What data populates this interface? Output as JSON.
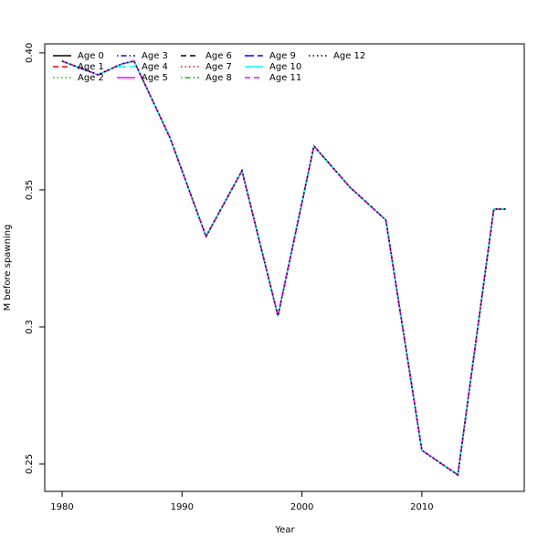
{
  "chart_data": {
    "type": "line",
    "xlabel": "Year",
    "ylabel": "M before spawning",
    "x": [
      1980,
      1983,
      1985,
      1986,
      1989,
      1992,
      1995,
      1998,
      2001,
      2002,
      2003,
      2004,
      2006,
      2007,
      2010,
      2013,
      2016,
      2017
    ],
    "xlim": [
      1978.55,
      2018.54
    ],
    "xticks": [
      1980,
      1990,
      2000,
      2010
    ],
    "ylim": [
      0.24,
      0.4033
    ],
    "yticks": [
      0.25,
      0.3,
      0.35,
      {
        "value": 0.4,
        "label": "0.40"
      }
    ],
    "series": [
      {
        "name": "Age 0",
        "color": "#000000",
        "linestyle": "solid",
        "values": [
          0.397,
          0.392,
          0.396,
          0.397,
          0.369,
          0.333,
          0.357,
          0.304,
          0.366,
          0.361,
          0.356,
          0.351,
          0.343,
          0.339,
          0.255,
          0.246,
          0.343,
          0.343
        ]
      },
      {
        "name": "Age 1",
        "color": "#ff0000",
        "linestyle": "dashed",
        "values": [
          0.397,
          0.392,
          0.396,
          0.397,
          0.369,
          0.333,
          0.357,
          0.304,
          0.366,
          0.361,
          0.356,
          0.351,
          0.343,
          0.339,
          0.255,
          0.246,
          0.343,
          0.343
        ]
      },
      {
        "name": "Age 2",
        "color": "#00cd00",
        "linestyle": "dotted",
        "values": [
          0.397,
          0.392,
          0.396,
          0.397,
          0.369,
          0.333,
          0.357,
          0.304,
          0.366,
          0.361,
          0.356,
          0.351,
          0.343,
          0.339,
          0.255,
          0.246,
          0.343,
          0.343
        ]
      },
      {
        "name": "Age 3",
        "color": "#0000ff",
        "linestyle": "dotdash",
        "values": [
          0.397,
          0.392,
          0.396,
          0.397,
          0.369,
          0.333,
          0.357,
          0.304,
          0.366,
          0.361,
          0.356,
          0.351,
          0.343,
          0.339,
          0.255,
          0.246,
          0.343,
          0.343
        ]
      },
      {
        "name": "Age 4",
        "color": "#00ffff",
        "linestyle": "longdash",
        "values": [
          0.397,
          0.392,
          0.396,
          0.397,
          0.369,
          0.333,
          0.357,
          0.304,
          0.366,
          0.361,
          0.356,
          0.351,
          0.343,
          0.339,
          0.255,
          0.246,
          0.343,
          0.343
        ]
      },
      {
        "name": "Age 5",
        "color": "#ff00ff",
        "linestyle": "solid",
        "values": [
          0.397,
          0.392,
          0.396,
          0.397,
          0.369,
          0.333,
          0.357,
          0.304,
          0.366,
          0.361,
          0.356,
          0.351,
          0.343,
          0.339,
          0.255,
          0.246,
          0.343,
          0.343
        ]
      },
      {
        "name": "Age 6",
        "color": "#000000",
        "linestyle": "dashed",
        "values": [
          0.397,
          0.392,
          0.396,
          0.397,
          0.369,
          0.333,
          0.357,
          0.304,
          0.366,
          0.361,
          0.356,
          0.351,
          0.343,
          0.339,
          0.255,
          0.246,
          0.343,
          0.343
        ]
      },
      {
        "name": "Age 7",
        "color": "#ff0000",
        "linestyle": "dotted",
        "values": [
          0.397,
          0.392,
          0.396,
          0.397,
          0.369,
          0.333,
          0.357,
          0.304,
          0.366,
          0.361,
          0.356,
          0.351,
          0.343,
          0.339,
          0.255,
          0.246,
          0.343,
          0.343
        ]
      },
      {
        "name": "Age 8",
        "color": "#00cd00",
        "linestyle": "dotdash",
        "values": [
          0.397,
          0.392,
          0.396,
          0.397,
          0.369,
          0.333,
          0.357,
          0.304,
          0.366,
          0.361,
          0.356,
          0.351,
          0.343,
          0.339,
          0.255,
          0.246,
          0.343,
          0.343
        ]
      },
      {
        "name": "Age 9",
        "color": "#0000ff",
        "linestyle": "longdash",
        "values": [
          0.397,
          0.392,
          0.396,
          0.397,
          0.369,
          0.333,
          0.357,
          0.304,
          0.366,
          0.361,
          0.356,
          0.351,
          0.343,
          0.339,
          0.255,
          0.246,
          0.343,
          0.343
        ]
      },
      {
        "name": "Age 10",
        "color": "#00ffff",
        "linestyle": "solid",
        "values": [
          0.397,
          0.392,
          0.396,
          0.397,
          0.369,
          0.333,
          0.357,
          0.304,
          0.366,
          0.361,
          0.356,
          0.351,
          0.343,
          0.339,
          0.255,
          0.246,
          0.343,
          0.343
        ]
      },
      {
        "name": "Age 11",
        "color": "#ff00ff",
        "linestyle": "dashed",
        "values": [
          0.397,
          0.392,
          0.396,
          0.397,
          0.369,
          0.333,
          0.357,
          0.304,
          0.366,
          0.361,
          0.356,
          0.351,
          0.343,
          0.339,
          0.255,
          0.246,
          0.343,
          0.343
        ]
      },
      {
        "name": "Age 12",
        "color": "#000000",
        "linestyle": "dotted",
        "values": [
          0.397,
          0.392,
          0.396,
          0.397,
          0.369,
          0.333,
          0.357,
          0.304,
          0.366,
          0.361,
          0.356,
          0.351,
          0.343,
          0.339,
          0.255,
          0.246,
          0.343,
          0.343
        ]
      }
    ]
  }
}
